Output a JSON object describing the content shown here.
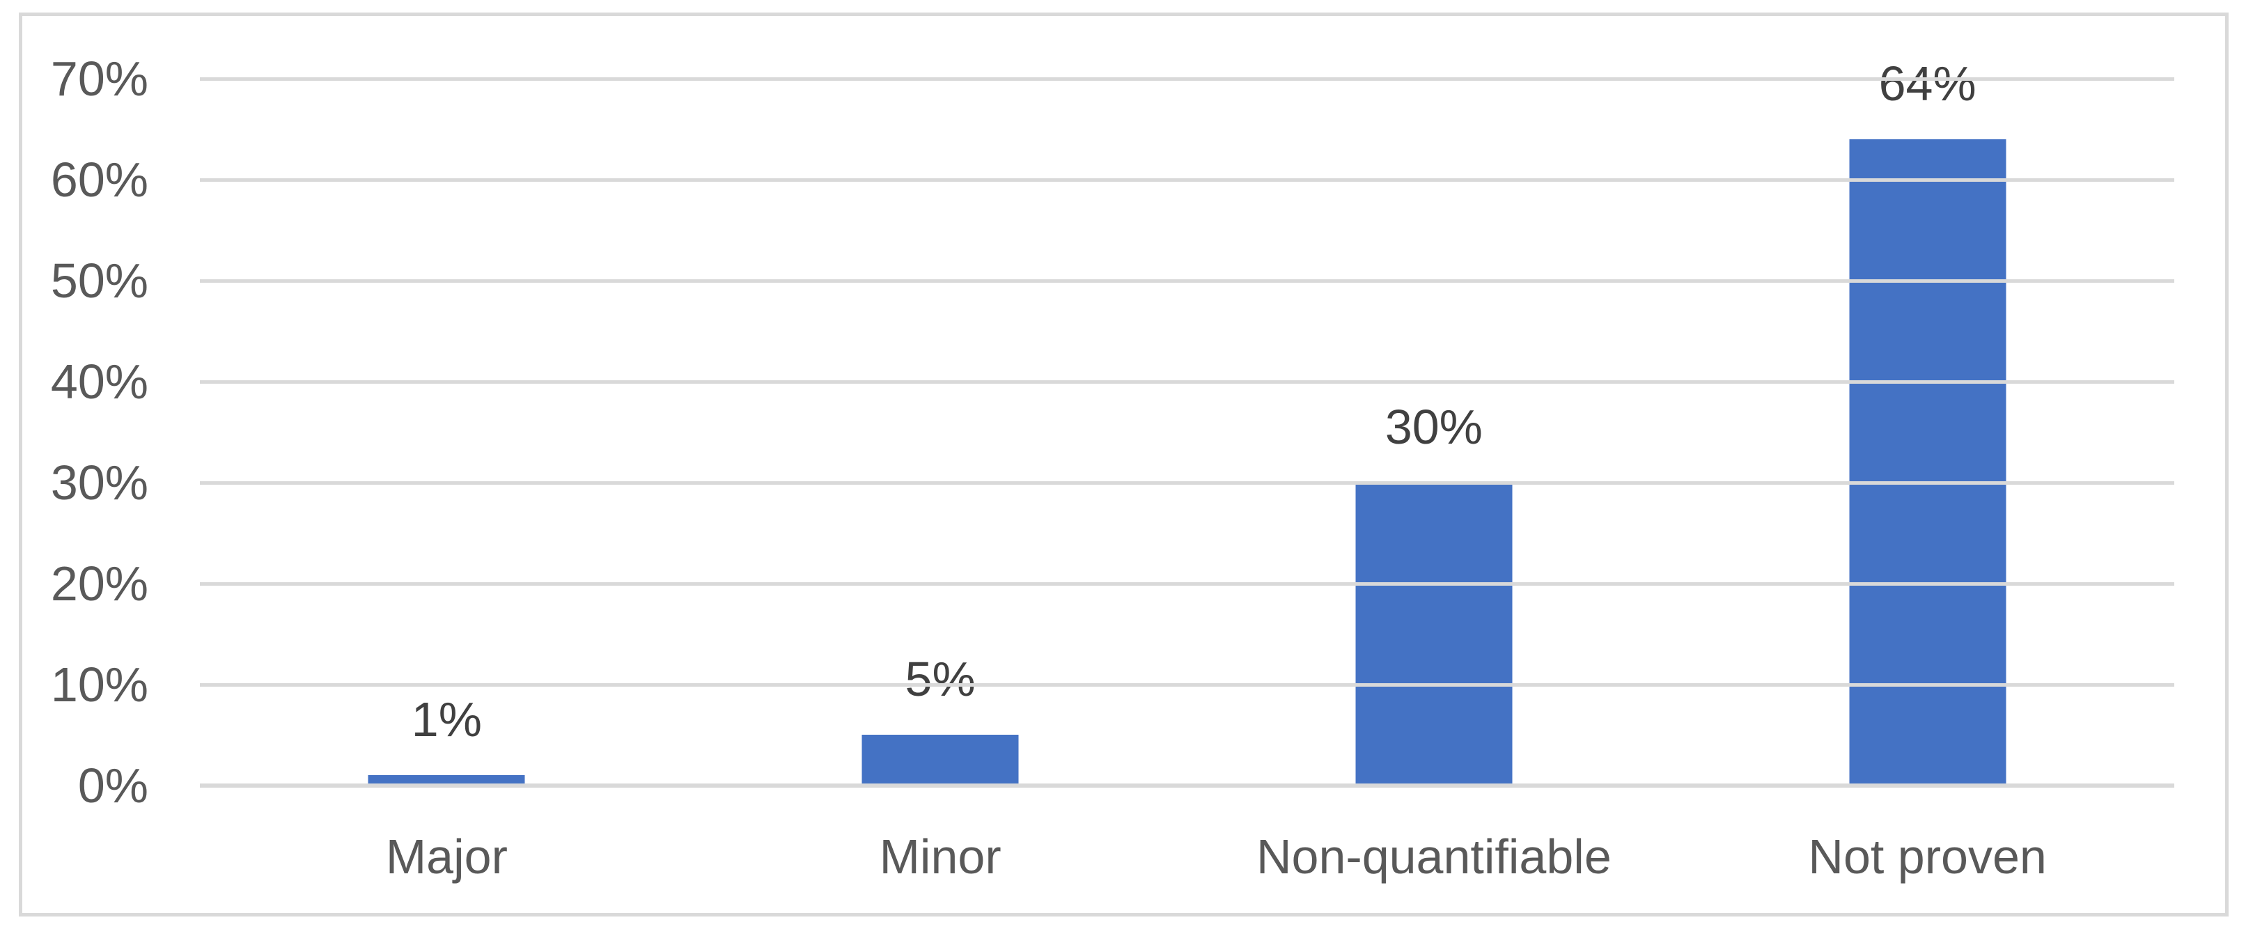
{
  "chart_data": {
    "type": "bar",
    "title": "",
    "xlabel": "",
    "ylabel": "",
    "categories": [
      "Major",
      "Minor",
      "Non-quantifiable",
      "Not proven"
    ],
    "values": [
      1,
      5,
      30,
      64
    ],
    "data_labels": [
      "1%",
      "5%",
      "30%",
      "64%"
    ],
    "ylim": [
      0,
      70
    ],
    "ytick_step": 10,
    "ytick_labels": [
      "0%",
      "10%",
      "20%",
      "30%",
      "40%",
      "50%",
      "60%",
      "70%"
    ],
    "grid": true,
    "legend": false,
    "colors": {
      "bar": "#4472C4",
      "gridline": "#D9D9D9",
      "axis_line": "#D9D9D9",
      "frame_border": "#D9D9D9",
      "tick_label_text": "#595959",
      "category_label_text": "#595959",
      "data_label_text": "#404040",
      "background": "#FFFFFF"
    }
  }
}
